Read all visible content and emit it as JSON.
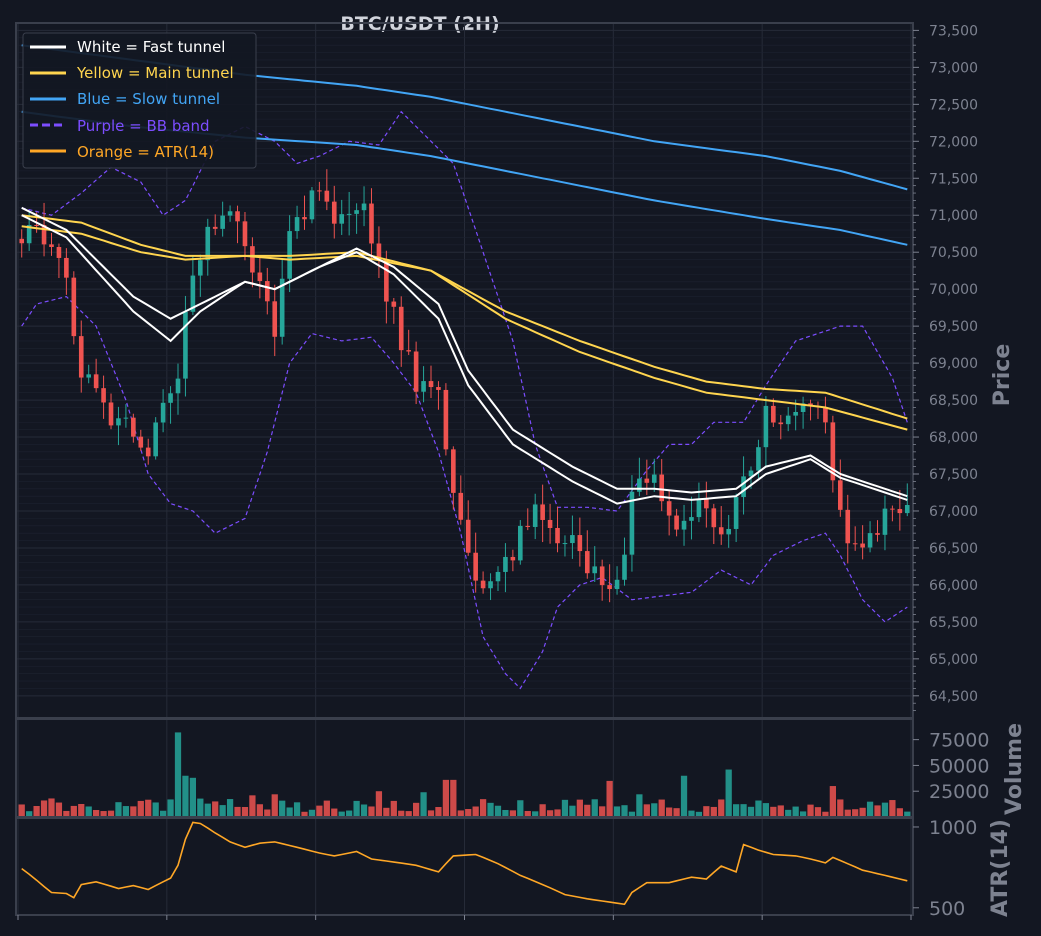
{
  "chart_data": {
    "type": "candlestick",
    "title": "BTC/USDT (2H)",
    "colors": {
      "background": "#131722",
      "grid": "#262b38",
      "frame": "#3a3f4c",
      "up": "#26a69a",
      "down": "#ef5350",
      "fast": "#ffffff",
      "main": "#ffd54f",
      "slow": "#42a5f5",
      "bb": "#7c4dff",
      "atr": "#ffa726",
      "text": "#d1d4dc",
      "tick": "#7d8290"
    },
    "legend": {
      "position": "top-left",
      "items": [
        {
          "label": "White = Fast tunnel",
          "color": "#ffffff",
          "style": "solid"
        },
        {
          "label": "Yellow = Main tunnel",
          "color": "#ffd54f",
          "style": "solid"
        },
        {
          "label": "Blue = Slow tunnel",
          "color": "#42a5f5",
          "style": "solid"
        },
        {
          "label": "Purple = BB band",
          "color": "#7c4dff",
          "style": "dashed"
        },
        {
          "label": "Orange = ATR(14)",
          "color": "#ffa726",
          "style": "solid"
        }
      ]
    },
    "price_panel": {
      "ylabel": "Price",
      "ylim": [
        64200,
        73600
      ],
      "yticks": [
        "64,500",
        "65,000",
        "65,500",
        "66,000",
        "66,500",
        "67,000",
        "67,500",
        "68,000",
        "68,500",
        "69,000",
        "69,500",
        "70,000",
        "70,500",
        "71,000",
        "71,500",
        "72,000",
        "72,500",
        "73,000",
        "73,500"
      ],
      "candle_count": 120,
      "close_path": [
        {
          "i": 0,
          "v": 70800
        },
        {
          "i": 5,
          "v": 70600
        },
        {
          "i": 8,
          "v": 68900
        },
        {
          "i": 12,
          "v": 68300
        },
        {
          "i": 17,
          "v": 67900
        },
        {
          "i": 21,
          "v": 68900
        },
        {
          "i": 23,
          "v": 70200
        },
        {
          "i": 26,
          "v": 70900
        },
        {
          "i": 29,
          "v": 71000
        },
        {
          "i": 31,
          "v": 70300
        },
        {
          "i": 34,
          "v": 69400
        },
        {
          "i": 36,
          "v": 70900
        },
        {
          "i": 40,
          "v": 71300
        },
        {
          "i": 43,
          "v": 70900
        },
        {
          "i": 46,
          "v": 71000
        },
        {
          "i": 48,
          "v": 70400
        },
        {
          "i": 50,
          "v": 69600
        },
        {
          "i": 53,
          "v": 68700
        },
        {
          "i": 56,
          "v": 68500
        },
        {
          "i": 59,
          "v": 66800
        },
        {
          "i": 61,
          "v": 65900
        },
        {
          "i": 64,
          "v": 66100
        },
        {
          "i": 67,
          "v": 66700
        },
        {
          "i": 70,
          "v": 67000
        },
        {
          "i": 73,
          "v": 66600
        },
        {
          "i": 77,
          "v": 66200
        },
        {
          "i": 80,
          "v": 65900
        },
        {
          "i": 82,
          "v": 67200
        },
        {
          "i": 85,
          "v": 67500
        },
        {
          "i": 88,
          "v": 66900
        },
        {
          "i": 91,
          "v": 67100
        },
        {
          "i": 94,
          "v": 66600
        },
        {
          "i": 97,
          "v": 67400
        },
        {
          "i": 100,
          "v": 68300
        },
        {
          "i": 103,
          "v": 68200
        },
        {
          "i": 106,
          "v": 68600
        },
        {
          "i": 108,
          "v": 68200
        },
        {
          "i": 110,
          "v": 66900
        },
        {
          "i": 113,
          "v": 66400
        },
        {
          "i": 116,
          "v": 66900
        },
        {
          "i": 119,
          "v": 66900
        }
      ],
      "fast_tunnel_upper": [
        {
          "i": 0,
          "v": 71100
        },
        {
          "i": 6,
          "v": 70800
        },
        {
          "i": 15,
          "v": 69900
        },
        {
          "i": 20,
          "v": 69600
        },
        {
          "i": 24,
          "v": 69800
        },
        {
          "i": 30,
          "v": 70100
        },
        {
          "i": 34,
          "v": 70000
        },
        {
          "i": 40,
          "v": 70300
        },
        {
          "i": 45,
          "v": 70550
        },
        {
          "i": 50,
          "v": 70300
        },
        {
          "i": 56,
          "v": 69800
        },
        {
          "i": 60,
          "v": 68900
        },
        {
          "i": 66,
          "v": 68100
        },
        {
          "i": 74,
          "v": 67600
        },
        {
          "i": 80,
          "v": 67300
        },
        {
          "i": 85,
          "v": 67300
        },
        {
          "i": 90,
          "v": 67250
        },
        {
          "i": 96,
          "v": 67300
        },
        {
          "i": 100,
          "v": 67600
        },
        {
          "i": 106,
          "v": 67750
        },
        {
          "i": 110,
          "v": 67500
        },
        {
          "i": 119,
          "v": 67200
        }
      ],
      "fast_tunnel_lower": [
        {
          "i": 0,
          "v": 71000
        },
        {
          "i": 6,
          "v": 70700
        },
        {
          "i": 15,
          "v": 69700
        },
        {
          "i": 20,
          "v": 69300
        },
        {
          "i": 24,
          "v": 69700
        },
        {
          "i": 30,
          "v": 70100
        },
        {
          "i": 34,
          "v": 70000
        },
        {
          "i": 40,
          "v": 70300
        },
        {
          "i": 45,
          "v": 70500
        },
        {
          "i": 50,
          "v": 70200
        },
        {
          "i": 56,
          "v": 69600
        },
        {
          "i": 60,
          "v": 68700
        },
        {
          "i": 66,
          "v": 67900
        },
        {
          "i": 74,
          "v": 67400
        },
        {
          "i": 80,
          "v": 67100
        },
        {
          "i": 85,
          "v": 67200
        },
        {
          "i": 90,
          "v": 67150
        },
        {
          "i": 96,
          "v": 67200
        },
        {
          "i": 100,
          "v": 67500
        },
        {
          "i": 106,
          "v": 67700
        },
        {
          "i": 110,
          "v": 67450
        },
        {
          "i": 119,
          "v": 67150
        }
      ],
      "main_tunnel_upper": [
        {
          "i": 0,
          "v": 71000
        },
        {
          "i": 8,
          "v": 70900
        },
        {
          "i": 16,
          "v": 70600
        },
        {
          "i": 22,
          "v": 70450
        },
        {
          "i": 30,
          "v": 70450
        },
        {
          "i": 36,
          "v": 70450
        },
        {
          "i": 45,
          "v": 70500
        },
        {
          "i": 55,
          "v": 70250
        },
        {
          "i": 65,
          "v": 69700
        },
        {
          "i": 75,
          "v": 69300
        },
        {
          "i": 85,
          "v": 68950
        },
        {
          "i": 92,
          "v": 68750
        },
        {
          "i": 100,
          "v": 68650
        },
        {
          "i": 108,
          "v": 68600
        },
        {
          "i": 119,
          "v": 68250
        }
      ],
      "main_tunnel_lower": [
        {
          "i": 0,
          "v": 70850
        },
        {
          "i": 8,
          "v": 70750
        },
        {
          "i": 16,
          "v": 70500
        },
        {
          "i": 22,
          "v": 70400
        },
        {
          "i": 30,
          "v": 70450
        },
        {
          "i": 36,
          "v": 70400
        },
        {
          "i": 45,
          "v": 70450
        },
        {
          "i": 55,
          "v": 70250
        },
        {
          "i": 65,
          "v": 69600
        },
        {
          "i": 75,
          "v": 69150
        },
        {
          "i": 85,
          "v": 68800
        },
        {
          "i": 92,
          "v": 68600
        },
        {
          "i": 100,
          "v": 68500
        },
        {
          "i": 108,
          "v": 68400
        },
        {
          "i": 119,
          "v": 68100
        }
      ],
      "slow_tunnel_upper": [
        {
          "i": 0,
          "v": 73300
        },
        {
          "i": 15,
          "v": 73100
        },
        {
          "i": 30,
          "v": 72900
        },
        {
          "i": 45,
          "v": 72750
        },
        {
          "i": 55,
          "v": 72600
        },
        {
          "i": 70,
          "v": 72300
        },
        {
          "i": 85,
          "v": 72000
        },
        {
          "i": 100,
          "v": 71800
        },
        {
          "i": 110,
          "v": 71600
        },
        {
          "i": 119,
          "v": 71350
        }
      ],
      "slow_tunnel_lower": [
        {
          "i": 0,
          "v": 72400
        },
        {
          "i": 15,
          "v": 72200
        },
        {
          "i": 30,
          "v": 72050
        },
        {
          "i": 45,
          "v": 71950
        },
        {
          "i": 55,
          "v": 71800
        },
        {
          "i": 70,
          "v": 71500
        },
        {
          "i": 85,
          "v": 71200
        },
        {
          "i": 100,
          "v": 70950
        },
        {
          "i": 110,
          "v": 70800
        },
        {
          "i": 119,
          "v": 70600
        }
      ],
      "bb_upper": [
        {
          "i": 0,
          "v": 71100
        },
        {
          "i": 4,
          "v": 71000
        },
        {
          "i": 8,
          "v": 71300
        },
        {
          "i": 12,
          "v": 71650
        },
        {
          "i": 16,
          "v": 71450
        },
        {
          "i": 19,
          "v": 71000
        },
        {
          "i": 22,
          "v": 71200
        },
        {
          "i": 26,
          "v": 72000
        },
        {
          "i": 30,
          "v": 72200
        },
        {
          "i": 34,
          "v": 72000
        },
        {
          "i": 37,
          "v": 71700
        },
        {
          "i": 40,
          "v": 71800
        },
        {
          "i": 44,
          "v": 72000
        },
        {
          "i": 48,
          "v": 71950
        },
        {
          "i": 51,
          "v": 72400
        },
        {
          "i": 54,
          "v": 72100
        },
        {
          "i": 58,
          "v": 71700
        },
        {
          "i": 62,
          "v": 70500
        },
        {
          "i": 66,
          "v": 69300
        },
        {
          "i": 69,
          "v": 67900
        },
        {
          "i": 72,
          "v": 67050
        },
        {
          "i": 76,
          "v": 67050
        },
        {
          "i": 80,
          "v": 67000
        },
        {
          "i": 84,
          "v": 67550
        },
        {
          "i": 87,
          "v": 67900
        },
        {
          "i": 90,
          "v": 67900
        },
        {
          "i": 93,
          "v": 68200
        },
        {
          "i": 97,
          "v": 68200
        },
        {
          "i": 100,
          "v": 68700
        },
        {
          "i": 104,
          "v": 69300
        },
        {
          "i": 107,
          "v": 69400
        },
        {
          "i": 110,
          "v": 69500
        },
        {
          "i": 113,
          "v": 69500
        },
        {
          "i": 117,
          "v": 68800
        },
        {
          "i": 119,
          "v": 68200
        }
      ],
      "bb_lower": [
        {
          "i": 0,
          "v": 69500
        },
        {
          "i": 2,
          "v": 69800
        },
        {
          "i": 6,
          "v": 69900
        },
        {
          "i": 10,
          "v": 69500
        },
        {
          "i": 14,
          "v": 68500
        },
        {
          "i": 17,
          "v": 67500
        },
        {
          "i": 20,
          "v": 67100
        },
        {
          "i": 23,
          "v": 67000
        },
        {
          "i": 26,
          "v": 66700
        },
        {
          "i": 30,
          "v": 66900
        },
        {
          "i": 33,
          "v": 67800
        },
        {
          "i": 36,
          "v": 69000
        },
        {
          "i": 39,
          "v": 69400
        },
        {
          "i": 43,
          "v": 69300
        },
        {
          "i": 47,
          "v": 69350
        },
        {
          "i": 50,
          "v": 69000
        },
        {
          "i": 53,
          "v": 68600
        },
        {
          "i": 56,
          "v": 67800
        },
        {
          "i": 59,
          "v": 66700
        },
        {
          "i": 62,
          "v": 65300
        },
        {
          "i": 65,
          "v": 64800
        },
        {
          "i": 67,
          "v": 64600
        },
        {
          "i": 70,
          "v": 65100
        },
        {
          "i": 72,
          "v": 65700
        },
        {
          "i": 75,
          "v": 66000
        },
        {
          "i": 78,
          "v": 66100
        },
        {
          "i": 82,
          "v": 65800
        },
        {
          "i": 86,
          "v": 65850
        },
        {
          "i": 90,
          "v": 65900
        },
        {
          "i": 94,
          "v": 66200
        },
        {
          "i": 98,
          "v": 66000
        },
        {
          "i": 101,
          "v": 66400
        },
        {
          "i": 105,
          "v": 66600
        },
        {
          "i": 108,
          "v": 66700
        },
        {
          "i": 110,
          "v": 66400
        },
        {
          "i": 113,
          "v": 65800
        },
        {
          "i": 116,
          "v": 65500
        },
        {
          "i": 119,
          "v": 65700
        }
      ]
    },
    "volume_panel": {
      "ylabel": "Volume",
      "ylim": [
        0,
        95000
      ],
      "yticks": [
        "25000",
        "50000",
        "75000"
      ],
      "spikes": [
        {
          "i": 21,
          "v": 82000
        },
        {
          "i": 22,
          "v": 40000
        },
        {
          "i": 23,
          "v": 38000
        },
        {
          "i": 31,
          "v": 21000
        },
        {
          "i": 34,
          "v": 22000
        },
        {
          "i": 48,
          "v": 25000
        },
        {
          "i": 54,
          "v": 24000
        },
        {
          "i": 57,
          "v": 36000
        },
        {
          "i": 58,
          "v": 36000
        },
        {
          "i": 79,
          "v": 35000
        },
        {
          "i": 83,
          "v": 22000
        },
        {
          "i": 89,
          "v": 40000
        },
        {
          "i": 95,
          "v": 46000
        },
        {
          "i": 109,
          "v": 30000
        }
      ]
    },
    "atr_panel": {
      "ylabel": "ATR(14)",
      "scale": "log",
      "ylim": [
        470,
        1080
      ],
      "yticks": [
        "500",
        "1000"
      ],
      "series": [
        {
          "i": 0,
          "v": 700
        },
        {
          "i": 3,
          "v": 600
        },
        {
          "i": 4,
          "v": 570
        },
        {
          "i": 6,
          "v": 565
        },
        {
          "i": 7,
          "v": 545
        },
        {
          "i": 8,
          "v": 610
        },
        {
          "i": 10,
          "v": 625
        },
        {
          "i": 13,
          "v": 590
        },
        {
          "i": 15,
          "v": 605
        },
        {
          "i": 17,
          "v": 585
        },
        {
          "i": 19,
          "v": 625
        },
        {
          "i": 20,
          "v": 645
        },
        {
          "i": 21,
          "v": 720
        },
        {
          "i": 22,
          "v": 900
        },
        {
          "i": 23,
          "v": 1040
        },
        {
          "i": 24,
          "v": 1030
        },
        {
          "i": 26,
          "v": 950
        },
        {
          "i": 28,
          "v": 880
        },
        {
          "i": 30,
          "v": 840
        },
        {
          "i": 32,
          "v": 870
        },
        {
          "i": 34,
          "v": 880
        },
        {
          "i": 37,
          "v": 840
        },
        {
          "i": 40,
          "v": 800
        },
        {
          "i": 42,
          "v": 780
        },
        {
          "i": 45,
          "v": 810
        },
        {
          "i": 47,
          "v": 760
        },
        {
          "i": 50,
          "v": 740
        },
        {
          "i": 53,
          "v": 720
        },
        {
          "i": 56,
          "v": 680
        },
        {
          "i": 58,
          "v": 780
        },
        {
          "i": 61,
          "v": 790
        },
        {
          "i": 64,
          "v": 730
        },
        {
          "i": 67,
          "v": 660
        },
        {
          "i": 70,
          "v": 610
        },
        {
          "i": 73,
          "v": 560
        },
        {
          "i": 76,
          "v": 540
        },
        {
          "i": 79,
          "v": 525
        },
        {
          "i": 81,
          "v": 515
        },
        {
          "i": 82,
          "v": 570
        },
        {
          "i": 84,
          "v": 620
        },
        {
          "i": 87,
          "v": 620
        },
        {
          "i": 90,
          "v": 650
        },
        {
          "i": 92,
          "v": 640
        },
        {
          "i": 94,
          "v": 715
        },
        {
          "i": 96,
          "v": 680
        },
        {
          "i": 97,
          "v": 860
        },
        {
          "i": 99,
          "v": 820
        },
        {
          "i": 101,
          "v": 790
        },
        {
          "i": 104,
          "v": 780
        },
        {
          "i": 106,
          "v": 760
        },
        {
          "i": 108,
          "v": 735
        },
        {
          "i": 109,
          "v": 770
        },
        {
          "i": 111,
          "v": 730
        },
        {
          "i": 113,
          "v": 690
        },
        {
          "i": 116,
          "v": 660
        },
        {
          "i": 119,
          "v": 630
        }
      ]
    }
  }
}
